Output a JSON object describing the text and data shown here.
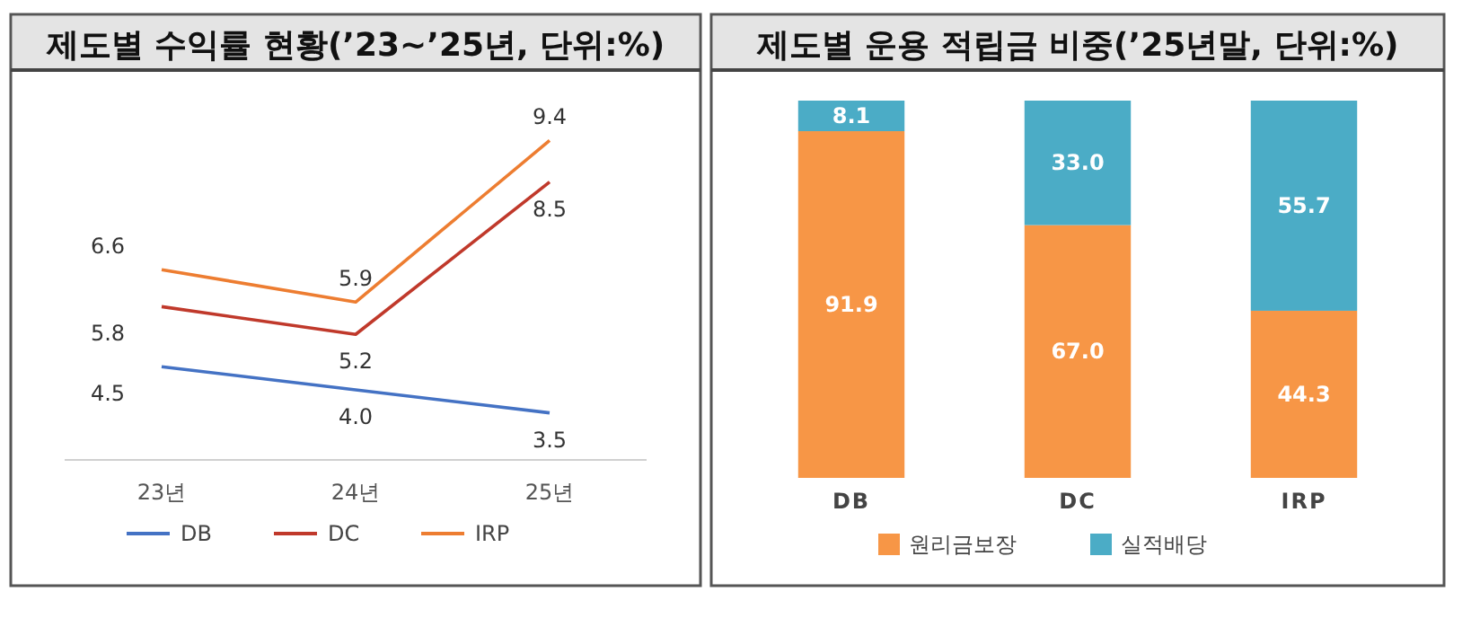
{
  "chart_data": [
    {
      "type": "line",
      "title": "제도별 수익률 현황(’23~’25년, 단위:%)",
      "categories": [
        "23년",
        "24년",
        "25년"
      ],
      "series": [
        {
          "name": "DB",
          "color": "#4472c4",
          "values": [
            4.5,
            4.0,
            3.5
          ],
          "value_labels": [
            "4.5",
            "4.0",
            "3.5"
          ]
        },
        {
          "name": "DC",
          "color": "#c0392b",
          "values": [
            5.8,
            5.2,
            8.5
          ],
          "value_labels": [
            "5.8",
            "5.2",
            "8.5"
          ]
        },
        {
          "name": "IRP",
          "color": "#ed7d31",
          "values": [
            6.6,
            5.9,
            9.4
          ],
          "value_labels": [
            "6.6",
            "5.9",
            "9.4"
          ]
        }
      ],
      "legend": "bottom",
      "marker": "none",
      "line_style": "solid"
    },
    {
      "type": "bar",
      "title": "제도별 운용 적립금 비중(’25년말, 단위:%)",
      "categories": [
        "DB",
        "DC",
        "IRP"
      ],
      "stacked": true,
      "series": [
        {
          "name": "원리금보장",
          "color": "#f79646",
          "values": [
            91.9,
            67.0,
            44.3
          ],
          "value_labels": [
            "91.9",
            "67.0",
            "44.3"
          ]
        },
        {
          "name": "실적배당",
          "color": "#4bacc6",
          "values": [
            8.1,
            33.0,
            55.7
          ],
          "value_labels": [
            "8.1",
            "33.0",
            "55.7"
          ]
        }
      ],
      "legend": "bottom"
    }
  ]
}
